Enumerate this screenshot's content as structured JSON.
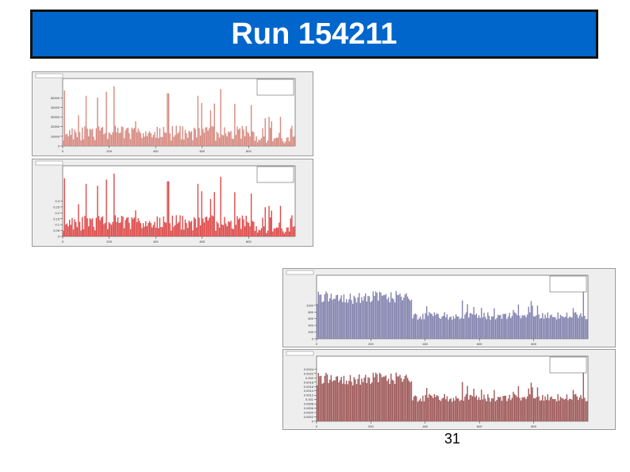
{
  "slide": {
    "title": "Run 154211",
    "page_number": "31"
  },
  "colors": {
    "title_bg": "#0066cc",
    "panel_bg": "#eeeeee",
    "red_light": "#d68a80",
    "red_strong": "#dd4a4a",
    "blue": "#8484b0",
    "maroon": "#a05a5a"
  },
  "chart_data": [
    {
      "id": "hist-1",
      "type": "bar",
      "series_name": "",
      "ylim": [
        0,
        70000
      ],
      "xlim": [
        0,
        1000
      ],
      "x_ticks": [
        0,
        200,
        400,
        600,
        800
      ],
      "y_ticks": [
        0,
        10000,
        20000,
        30000,
        40000,
        50000
      ],
      "seed": 11,
      "color": "#d68a80",
      "values_summary": "approximate per-module counts, mostly 5000-20000 with spikes to ~60000"
    },
    {
      "id": "hist-2",
      "type": "bar",
      "series_name": "",
      "ylim": [
        0,
        0.6
      ],
      "xlim": [
        0,
        1000
      ],
      "x_ticks": [
        0,
        200,
        400,
        600,
        800
      ],
      "y_ticks": [
        0,
        0.05,
        0.1,
        0.15,
        0.2,
        0.25,
        0.3
      ],
      "seed": 11,
      "color": "#dd4a4a",
      "values_summary": "normalized version of histogram 1"
    },
    {
      "id": "hist-3",
      "type": "bar",
      "series_name": "",
      "ylim": [
        0,
        1900
      ],
      "xlim": [
        0,
        1000
      ],
      "x_ticks": [
        0,
        200,
        400,
        600,
        800
      ],
      "y_ticks": [
        0,
        200,
        400,
        600,
        800,
        1000
      ],
      "seed": 37,
      "color": "#8484b0",
      "values_summary": "higher plateau (~1200) at low module numbers, ~700 plateau afterwards"
    },
    {
      "id": "hist-4",
      "type": "bar",
      "series_name": "",
      "ylim": [
        0,
        0.003
      ],
      "xlim": [
        0,
        1000
      ],
      "x_ticks": [
        0,
        200,
        400,
        600,
        800
      ],
      "y_ticks": [
        0,
        0.0002,
        0.0004,
        0.0006,
        0.0008,
        0.001,
        0.0012,
        0.0014,
        0.0016,
        0.0018,
        0.002,
        0.0022,
        0.0024
      ],
      "seed": 37,
      "color": "#a05a5a",
      "values_summary": "normalized version of histogram 3"
    }
  ]
}
